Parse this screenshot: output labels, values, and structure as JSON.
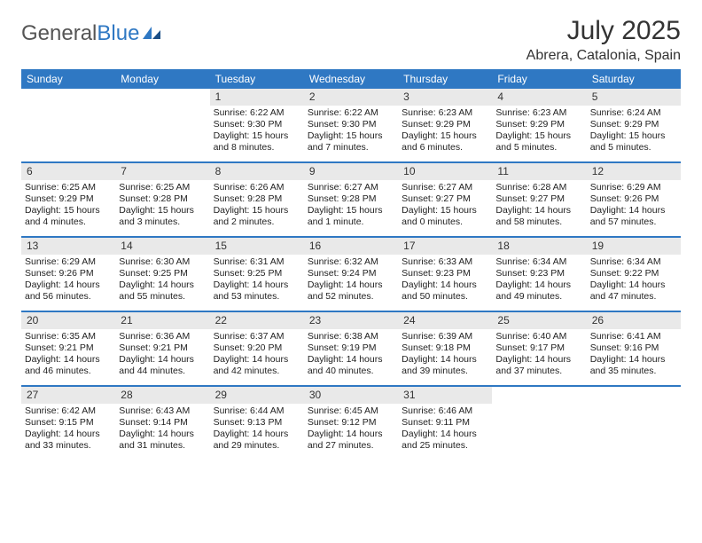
{
  "brand": {
    "part1": "General",
    "part2": "Blue"
  },
  "title": "July 2025",
  "location": "Abrera, Catalonia, Spain",
  "colors": {
    "accent": "#2f78c3",
    "band": "#e9e9e9",
    "text": "#222222",
    "header_text": "#333333",
    "background": "#ffffff"
  },
  "typography": {
    "title_fontsize": 30,
    "location_fontsize": 16,
    "dow_fontsize": 12,
    "daynum_fontsize": 12,
    "body_fontsize": 10.5
  },
  "layout": {
    "columns": 7,
    "rows": 5,
    "week_divider_color": "#2f78c3",
    "week_divider_width": 2
  },
  "days_of_week": [
    "Sunday",
    "Monday",
    "Tuesday",
    "Wednesday",
    "Thursday",
    "Friday",
    "Saturday"
  ],
  "weeks": [
    [
      {
        "day": "",
        "sunrise": "",
        "sunset": "",
        "daylight": ""
      },
      {
        "day": "",
        "sunrise": "",
        "sunset": "",
        "daylight": ""
      },
      {
        "day": "1",
        "sunrise": "6:22 AM",
        "sunset": "9:30 PM",
        "daylight": "15 hours and 8 minutes."
      },
      {
        "day": "2",
        "sunrise": "6:22 AM",
        "sunset": "9:30 PM",
        "daylight": "15 hours and 7 minutes."
      },
      {
        "day": "3",
        "sunrise": "6:23 AM",
        "sunset": "9:29 PM",
        "daylight": "15 hours and 6 minutes."
      },
      {
        "day": "4",
        "sunrise": "6:23 AM",
        "sunset": "9:29 PM",
        "daylight": "15 hours and 5 minutes."
      },
      {
        "day": "5",
        "sunrise": "6:24 AM",
        "sunset": "9:29 PM",
        "daylight": "15 hours and 5 minutes."
      }
    ],
    [
      {
        "day": "6",
        "sunrise": "6:25 AM",
        "sunset": "9:29 PM",
        "daylight": "15 hours and 4 minutes."
      },
      {
        "day": "7",
        "sunrise": "6:25 AM",
        "sunset": "9:28 PM",
        "daylight": "15 hours and 3 minutes."
      },
      {
        "day": "8",
        "sunrise": "6:26 AM",
        "sunset": "9:28 PM",
        "daylight": "15 hours and 2 minutes."
      },
      {
        "day": "9",
        "sunrise": "6:27 AM",
        "sunset": "9:28 PM",
        "daylight": "15 hours and 1 minute."
      },
      {
        "day": "10",
        "sunrise": "6:27 AM",
        "sunset": "9:27 PM",
        "daylight": "15 hours and 0 minutes."
      },
      {
        "day": "11",
        "sunrise": "6:28 AM",
        "sunset": "9:27 PM",
        "daylight": "14 hours and 58 minutes."
      },
      {
        "day": "12",
        "sunrise": "6:29 AM",
        "sunset": "9:26 PM",
        "daylight": "14 hours and 57 minutes."
      }
    ],
    [
      {
        "day": "13",
        "sunrise": "6:29 AM",
        "sunset": "9:26 PM",
        "daylight": "14 hours and 56 minutes."
      },
      {
        "day": "14",
        "sunrise": "6:30 AM",
        "sunset": "9:25 PM",
        "daylight": "14 hours and 55 minutes."
      },
      {
        "day": "15",
        "sunrise": "6:31 AM",
        "sunset": "9:25 PM",
        "daylight": "14 hours and 53 minutes."
      },
      {
        "day": "16",
        "sunrise": "6:32 AM",
        "sunset": "9:24 PM",
        "daylight": "14 hours and 52 minutes."
      },
      {
        "day": "17",
        "sunrise": "6:33 AM",
        "sunset": "9:23 PM",
        "daylight": "14 hours and 50 minutes."
      },
      {
        "day": "18",
        "sunrise": "6:34 AM",
        "sunset": "9:23 PM",
        "daylight": "14 hours and 49 minutes."
      },
      {
        "day": "19",
        "sunrise": "6:34 AM",
        "sunset": "9:22 PM",
        "daylight": "14 hours and 47 minutes."
      }
    ],
    [
      {
        "day": "20",
        "sunrise": "6:35 AM",
        "sunset": "9:21 PM",
        "daylight": "14 hours and 46 minutes."
      },
      {
        "day": "21",
        "sunrise": "6:36 AM",
        "sunset": "9:21 PM",
        "daylight": "14 hours and 44 minutes."
      },
      {
        "day": "22",
        "sunrise": "6:37 AM",
        "sunset": "9:20 PM",
        "daylight": "14 hours and 42 minutes."
      },
      {
        "day": "23",
        "sunrise": "6:38 AM",
        "sunset": "9:19 PM",
        "daylight": "14 hours and 40 minutes."
      },
      {
        "day": "24",
        "sunrise": "6:39 AM",
        "sunset": "9:18 PM",
        "daylight": "14 hours and 39 minutes."
      },
      {
        "day": "25",
        "sunrise": "6:40 AM",
        "sunset": "9:17 PM",
        "daylight": "14 hours and 37 minutes."
      },
      {
        "day": "26",
        "sunrise": "6:41 AM",
        "sunset": "9:16 PM",
        "daylight": "14 hours and 35 minutes."
      }
    ],
    [
      {
        "day": "27",
        "sunrise": "6:42 AM",
        "sunset": "9:15 PM",
        "daylight": "14 hours and 33 minutes."
      },
      {
        "day": "28",
        "sunrise": "6:43 AM",
        "sunset": "9:14 PM",
        "daylight": "14 hours and 31 minutes."
      },
      {
        "day": "29",
        "sunrise": "6:44 AM",
        "sunset": "9:13 PM",
        "daylight": "14 hours and 29 minutes."
      },
      {
        "day": "30",
        "sunrise": "6:45 AM",
        "sunset": "9:12 PM",
        "daylight": "14 hours and 27 minutes."
      },
      {
        "day": "31",
        "sunrise": "6:46 AM",
        "sunset": "9:11 PM",
        "daylight": "14 hours and 25 minutes."
      },
      {
        "day": "",
        "sunrise": "",
        "sunset": "",
        "daylight": ""
      },
      {
        "day": "",
        "sunrise": "",
        "sunset": "",
        "daylight": ""
      }
    ]
  ],
  "labels": {
    "sunrise": "Sunrise:",
    "sunset": "Sunset:",
    "daylight": "Daylight:"
  }
}
